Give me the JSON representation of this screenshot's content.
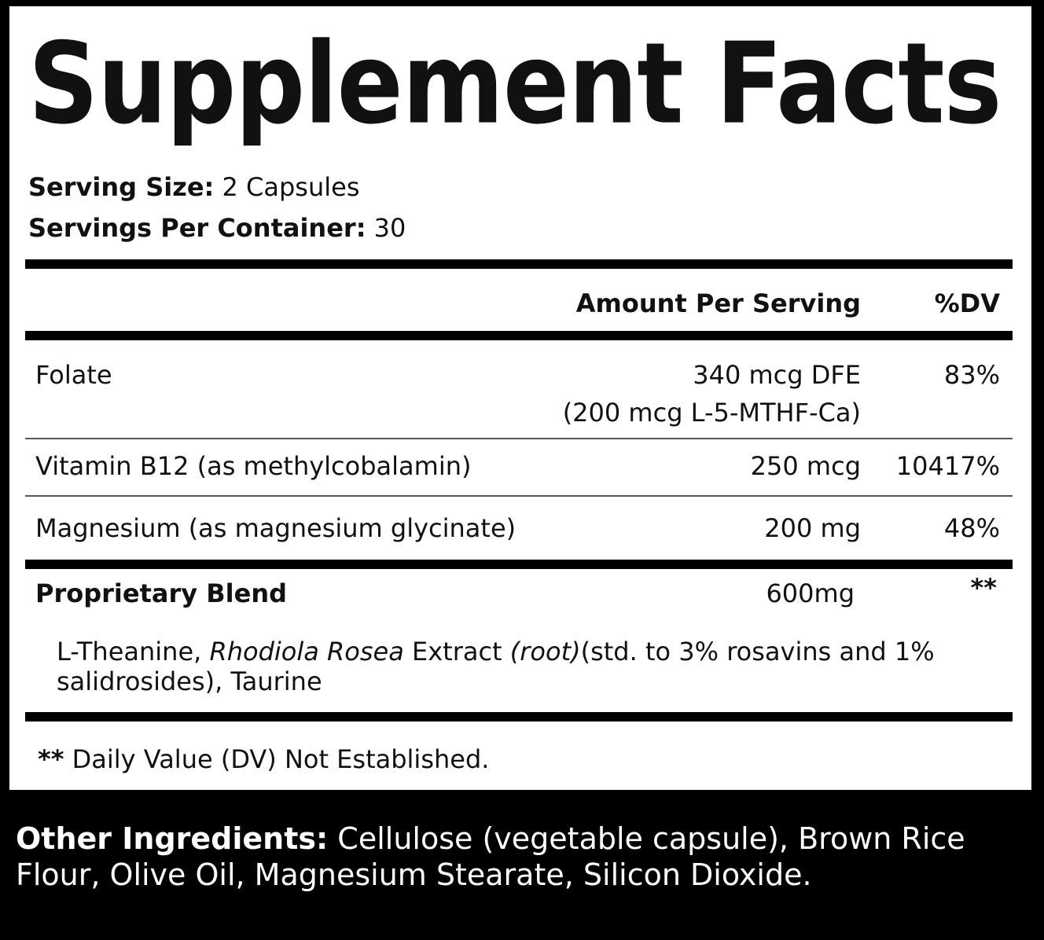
{
  "panel": {
    "title": "Supplement Facts",
    "serving_size": {
      "label": "Serving Size:",
      "value": "2 Capsules"
    },
    "servings_per_container": {
      "label": "Servings Per Container:",
      "value": "30"
    },
    "header": {
      "amount": "Amount Per Serving",
      "dv": "%DV"
    },
    "rows": [
      {
        "name": "Folate",
        "amount": "340 mcg DFE",
        "amount_note": "(200 mcg L-5-MTHF-Ca)",
        "dv": "83%"
      },
      {
        "name": "Vitamin B12 (as methylcobalamin)",
        "amount": "250 mcg",
        "dv": "10417%"
      },
      {
        "name": "Magnesium (as magnesium glycinate)",
        "amount": "200 mg",
        "dv": "48%"
      }
    ],
    "blend": {
      "name": "Proprietary Blend",
      "amount": "600mg",
      "dv": "**",
      "ingredients": [
        {
          "text": "L-Theanine, ",
          "italic": false
        },
        {
          "text": "Rhodiola Rosea",
          "italic": true
        },
        {
          "text": " Extract ",
          "italic": false
        },
        {
          "text": "(root)",
          "italic": true
        },
        {
          "text": "(std. to 3% rosavins and 1% salidrosides), Taurine",
          "italic": false
        }
      ]
    },
    "footnote": {
      "mark": "**",
      "text": "Daily Value (DV) Not Established."
    }
  },
  "other_ingredients": {
    "label": "Other Ingredients:",
    "text": "Cellulose (vegetable capsule), Brown Rice Flour, Olive Oil, Magnesium Stearate, Silicon Dioxide."
  }
}
